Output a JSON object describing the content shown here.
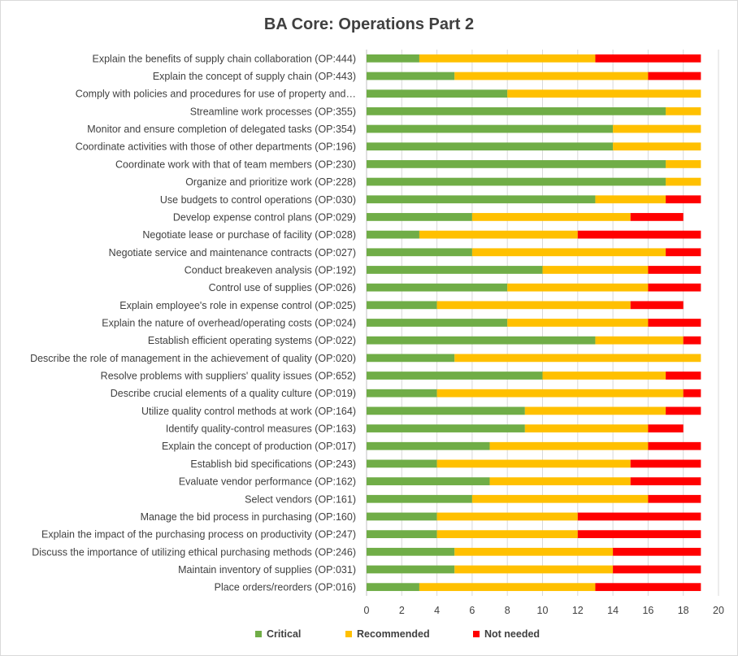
{
  "chart_data": {
    "type": "bar",
    "orientation": "horizontal",
    "stacked": true,
    "title": "BA Core: Operations Part 2",
    "xlabel": "",
    "ylabel": "",
    "xlim": [
      0,
      20
    ],
    "x_ticks": [
      0,
      2,
      4,
      6,
      8,
      10,
      12,
      14,
      16,
      18,
      20
    ],
    "grid": true,
    "legend_position": "bottom",
    "categories": [
      "Explain the benefits of supply chain collaboration (OP:444)",
      "Explain the concept of supply chain (OP:443)",
      "Comply with policies and procedures for use of property and…",
      "Streamline work processes (OP:355)",
      "Monitor and ensure completion of delegated tasks (OP:354)",
      "Coordinate activities with those of other departments (OP:196)",
      "Coordinate work with that of team members (OP:230)",
      "Organize and prioritize work (OP:228)",
      "Use budgets to control operations (OP:030)",
      "Develop expense control plans (OP:029)",
      "Negotiate lease or purchase of facility (OP:028)",
      "Negotiate service and maintenance contracts (OP:027)",
      "Conduct breakeven analysis (OP:192)",
      "Control use of supplies (OP:026)",
      "Explain employee's role in expense control (OP:025)",
      "Explain the nature of overhead/operating costs (OP:024)",
      "Establish efficient operating systems (OP:022)",
      "Describe the role of management in the achievement of quality (OP:020)",
      "Resolve problems with suppliers' quality issues (OP:652)",
      "Describe crucial elements of a quality culture (OP:019)",
      "Utilize quality control methods at work (OP:164)",
      "Identify quality-control measures (OP:163)",
      "Explain the concept of production (OP:017)",
      "Establish bid specifications (OP:243)",
      "Evaluate vendor performance (OP:162)",
      "Select vendors (OP:161)",
      "Manage the bid process in purchasing (OP:160)",
      "Explain the impact of the purchasing process on productivity (OP:247)",
      "Discuss the importance of utilizing ethical purchasing methods (OP:246)",
      "Maintain inventory of supplies (OP:031)",
      "Place orders/reorders (OP:016)"
    ],
    "series": [
      {
        "name": "Critical",
        "color": "#70ad47",
        "values": [
          3,
          5,
          8,
          17,
          14,
          14,
          17,
          17,
          13,
          6,
          3,
          6,
          10,
          8,
          4,
          8,
          13,
          5,
          10,
          4,
          9,
          9,
          7,
          4,
          7,
          6,
          4,
          4,
          5,
          5,
          3
        ]
      },
      {
        "name": "Recommended",
        "color": "#ffc000",
        "values": [
          10,
          11,
          11,
          2,
          5,
          5,
          2,
          2,
          4,
          9,
          9,
          11,
          6,
          8,
          11,
          8,
          5,
          14,
          7,
          14,
          8,
          7,
          9,
          11,
          8,
          10,
          8,
          8,
          9,
          9,
          10
        ]
      },
      {
        "name": "Not needed",
        "color": "#ff0000",
        "values": [
          6,
          3,
          0,
          0,
          0,
          0,
          0,
          0,
          2,
          3,
          7,
          2,
          3,
          3,
          3,
          3,
          1,
          0,
          2,
          1,
          2,
          2,
          3,
          4,
          4,
          3,
          7,
          7,
          5,
          5,
          6
        ]
      }
    ]
  }
}
